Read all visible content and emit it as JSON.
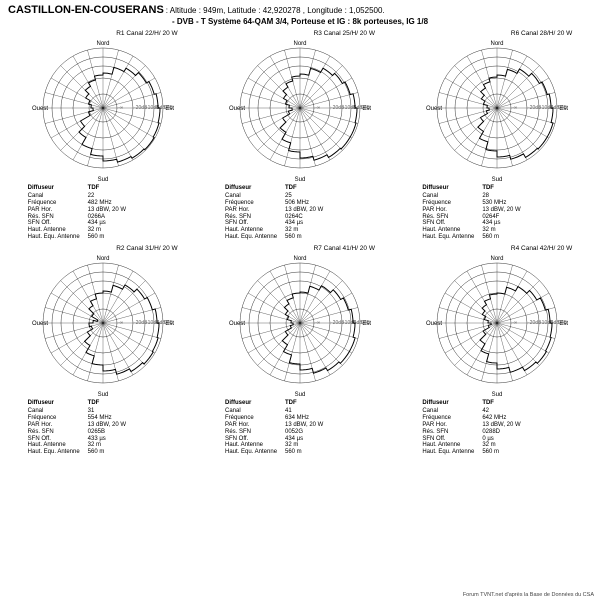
{
  "header": {
    "site": "CASTILLON-EN-COUSERANS",
    "meta": " : Altitude : 949m,  Latitude : 42,920278 ,  Longitude : 1,052500.",
    "subtitle": "- DVB - T     Système 64-QAM 3/4,  Porteuse et IG : 8k porteuses, IG 1/8"
  },
  "axis": {
    "n": "Nord",
    "e": "Est",
    "s": "Sud",
    "w": "Ouest"
  },
  "ring_labels": [
    "0dB",
    "-5dB",
    "-10dB",
    "-20dB",
    "-∞"
  ],
  "colors": {
    "bg": "#ffffff",
    "grid": "#000000",
    "line": "#000000",
    "text": "#000000"
  },
  "polar_style": {
    "outer_r": 60,
    "rings_r": [
      60,
      51,
      42,
      30,
      14
    ],
    "spokes": 24,
    "line_width": 1
  },
  "info_keys": [
    "Canal",
    "Fréquence",
    "PAR Hor.",
    "Rés. SFN",
    "SFN Off.",
    "Haut. Antenne",
    "Haut. Equ. Antenne"
  ],
  "info_header_left": "Diffuseur",
  "info_header_right": "TDF",
  "charts": [
    {
      "title": "R1  Canal 22/H/  20 W",
      "values": [
        "22",
        "482 MHz",
        "13 dBW, 20 W",
        "0266A",
        "434 µs",
        "32 m",
        "560 m"
      ],
      "radii": [
        35,
        42,
        46,
        50,
        53,
        55,
        57,
        58,
        59,
        58,
        56,
        53,
        48,
        42,
        34,
        26,
        15,
        10,
        12,
        15,
        20,
        25,
        29,
        33
      ]
    },
    {
      "title": "R3  Canal 25/H/  20 W",
      "values": [
        "25",
        "506 MHz",
        "13 dBW, 20 W",
        "0264C",
        "434 µs",
        "32 m",
        "560 m"
      ],
      "radii": [
        34,
        41,
        46,
        49,
        52,
        55,
        57,
        58,
        58,
        57,
        54,
        50,
        44,
        36,
        28,
        20,
        12,
        8,
        11,
        15,
        19,
        24,
        28,
        32
      ]
    },
    {
      "title": "R6  Canal 28/H/  20 W",
      "values": [
        "28",
        "530 MHz",
        "13 dBW, 20 W",
        "0264F",
        "434 µs",
        "32 m",
        "560 m"
      ],
      "radii": [
        33,
        40,
        45,
        49,
        52,
        54,
        56,
        58,
        58,
        57,
        53,
        49,
        43,
        35,
        27,
        19,
        11,
        8,
        10,
        14,
        18,
        23,
        27,
        31
      ]
    },
    {
      "title": "R2  Canal 31/H/  20 W",
      "values": [
        "31",
        "554 MHz",
        "13 dBW, 20 W",
        "0265B",
        "433 µs",
        "32 m",
        "560 m"
      ],
      "radii": [
        32,
        39,
        44,
        48,
        51,
        54,
        56,
        57,
        58,
        56,
        53,
        48,
        42,
        34,
        26,
        18,
        12,
        14,
        10,
        6,
        13,
        20,
        25,
        30
      ]
    },
    {
      "title": "R7  Canal 41/H/  20 W",
      "values": [
        "41",
        "634 MHz",
        "13 dBW, 20 W",
        "0052G",
        "434 µs",
        "32 m",
        "560 m"
      ],
      "radii": [
        31,
        38,
        43,
        47,
        50,
        53,
        55,
        57,
        57,
        55,
        52,
        47,
        41,
        33,
        25,
        17,
        10,
        7,
        9,
        13,
        17,
        22,
        26,
        30
      ]
    },
    {
      "title": "R4  Canal 42/H/  20 W",
      "values": [
        "42",
        "642 MHz",
        "13 dBW, 20 W",
        "0288D",
        "0 µs",
        "32 m",
        "560 m"
      ],
      "radii": [
        30,
        37,
        42,
        46,
        50,
        53,
        55,
        56,
        57,
        55,
        51,
        46,
        40,
        32,
        24,
        16,
        9,
        6,
        9,
        13,
        17,
        21,
        25,
        29
      ]
    }
  ],
  "footer": "Forum TVNT.net d'après la Base de Données du CSA"
}
